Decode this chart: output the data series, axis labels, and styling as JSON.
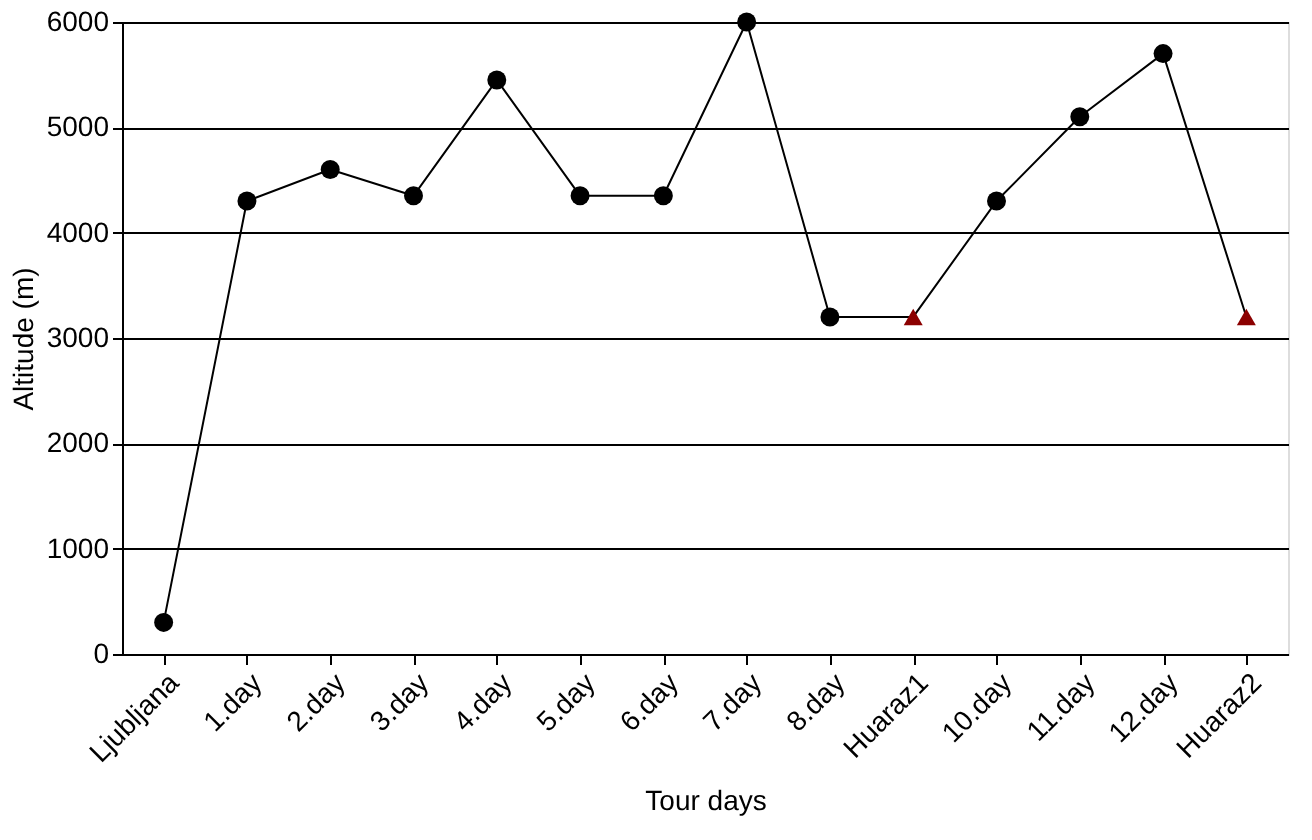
{
  "chart_data": {
    "type": "line",
    "xlabel": "Tour days",
    "ylabel": "Altitude (m)",
    "categories": [
      "Ljubljana",
      "1.day",
      "2.day",
      "3.day",
      "4.day",
      "5.day",
      "6.day",
      "7.day",
      "8.day",
      "Huaraz1",
      "10.day",
      "11.day",
      "12.day",
      "Huaraz2"
    ],
    "series": [
      {
        "color": "#000000",
        "marker": "none",
        "line_style": "solid",
        "values": [
          300,
          4300,
          4600,
          4350,
          5450,
          4350,
          4350,
          6000,
          3200,
          3200,
          4300,
          5100,
          5700,
          3200
        ]
      },
      {
        "type": "scatter",
        "color": "#000000",
        "marker": "circle",
        "values": [
          300,
          4300,
          4600,
          4350,
          5450,
          4350,
          4350,
          6000,
          3200,
          null,
          4300,
          5100,
          5700,
          null
        ]
      },
      {
        "type": "scatter",
        "color": "#8b0000",
        "marker": "triangle",
        "values": [
          null,
          null,
          null,
          null,
          null,
          null,
          null,
          null,
          null,
          3200,
          null,
          null,
          null,
          3200
        ]
      }
    ],
    "ylim": [
      0,
      6000
    ],
    "yticks": [
      0,
      1000,
      2000,
      3000,
      4000,
      5000,
      6000
    ],
    "grid": "y"
  }
}
